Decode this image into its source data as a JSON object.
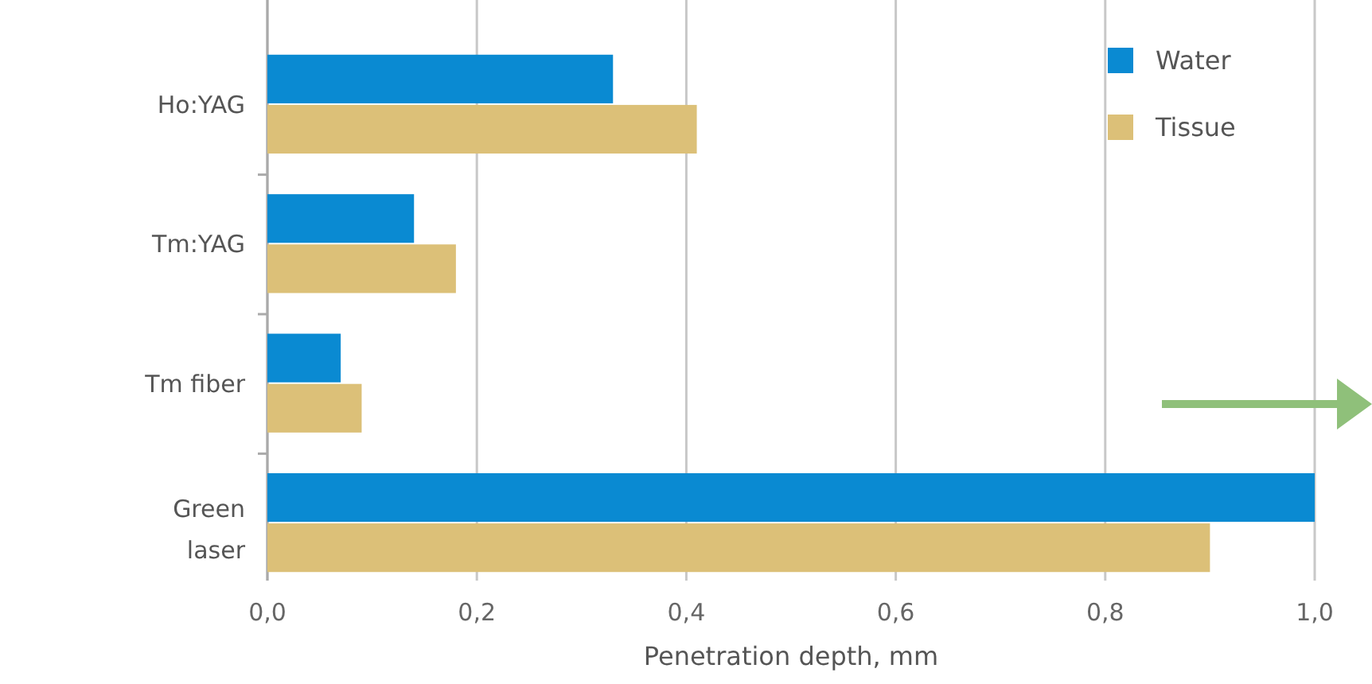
{
  "chart_data": {
    "type": "bar",
    "orientation": "horizontal",
    "xlabel": "Penetration depth, mm",
    "categories": [
      "Ho:YAG",
      "Tm:YAG",
      "Tm fiber",
      "Green laser"
    ],
    "series": [
      {
        "name": "Water",
        "color": "#0a8ad2",
        "values": [
          0.33,
          0.14,
          0.07,
          1.0
        ]
      },
      {
        "name": "Tissue",
        "color": "#dcc078",
        "values": [
          0.41,
          0.18,
          0.09,
          0.9
        ]
      }
    ],
    "xlim": [
      0,
      1
    ],
    "xticks": [
      {
        "value": 0,
        "label": "0,0"
      },
      {
        "value": 0.2,
        "label": "0,2"
      },
      {
        "value": 0.4,
        "label": "0,4"
      },
      {
        "value": 0.6,
        "label": "0,6"
      },
      {
        "value": 0.8,
        "label": "0,8"
      },
      {
        "value": 1,
        "label": "1,0"
      }
    ],
    "grid": "x",
    "legend": "top right"
  }
}
